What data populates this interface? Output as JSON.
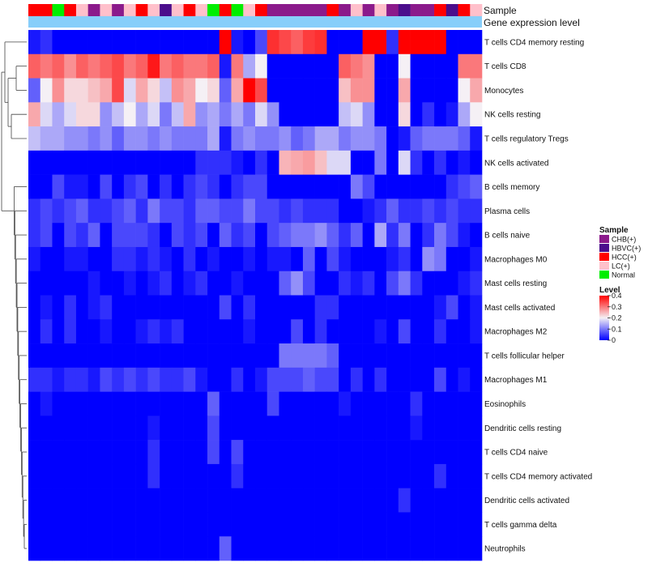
{
  "chart_data": {
    "type": "heatmap",
    "annotation_labels": {
      "sample": "Sample",
      "gene": "Gene expression level"
    },
    "sample_groups": [
      "CHB(+)",
      "HBVC(+)",
      "HCC(+)",
      "LC(+)",
      "Normal"
    ],
    "colors": {
      "sample": {
        "CHB(+)": "#8B1A8B",
        "HBVC(+)": "#4B0E8C",
        "HCC(+)": "#FF0000",
        "LC(+)": "#FFC0CB",
        "Normal": "#00EE00"
      },
      "gene_bar": "#87CEFA",
      "level_low": "#0000FF",
      "level_mid": "#F5F0F5",
      "level_high": "#FF0000"
    },
    "samples": [
      "HCC(+)",
      "HCC(+)",
      "Normal",
      "HCC(+)",
      "LC(+)",
      "CHB(+)",
      "LC(+)",
      "CHB(+)",
      "LC(+)",
      "HCC(+)",
      "LC(+)",
      "HBVC(+)",
      "LC(+)",
      "HCC(+)",
      "LC(+)",
      "Normal",
      "HCC(+)",
      "Normal",
      "LC(+)",
      "HCC(+)",
      "CHB(+)",
      "CHB(+)",
      "CHB(+)",
      "CHB(+)",
      "CHB(+)",
      "HCC(+)",
      "CHB(+)",
      "LC(+)",
      "CHB(+)",
      "LC(+)",
      "CHB(+)",
      "HBVC(+)",
      "CHB(+)",
      "CHB(+)",
      "HCC(+)",
      "HBVC(+)",
      "HCC(+)",
      "LC(+)"
    ],
    "rows": [
      "T cells CD4 memory resting",
      "T cells CD8",
      "Monocytes",
      "NK cells resting",
      "T cells regulatory  Tregs",
      "NK cells activated",
      "B cells memory",
      "Plasma cells",
      "B cells naive",
      "Macrophages M0",
      "Mast cells resting",
      "Mast cells activated",
      "Macrophages M2",
      "T cells follicular helper",
      "Macrophages M1",
      "Eosinophils",
      "Dendritic cells resting",
      "T cells CD4 naive",
      "T cells CD4 memory activated",
      "Dendritic cells activated",
      "T cells gamma delta",
      "Neutrophils"
    ],
    "values": [
      [
        0.02,
        0.04,
        0.0,
        0.0,
        0.0,
        0.0,
        0.0,
        0.0,
        0.0,
        0.0,
        0.0,
        0.0,
        0.0,
        0.0,
        0.0,
        0.0,
        0.4,
        0.02,
        0.0,
        0.06,
        0.36,
        0.34,
        0.32,
        0.35,
        0.36,
        0.0,
        0.0,
        0.0,
        0.4,
        0.4,
        0.04,
        0.4,
        0.4,
        0.4,
        0.4,
        0.0,
        0.0,
        0.0
      ],
      [
        0.32,
        0.3,
        0.32,
        0.28,
        0.32,
        0.3,
        0.32,
        0.34,
        0.3,
        0.32,
        0.38,
        0.3,
        0.32,
        0.3,
        0.3,
        0.32,
        0.02,
        0.3,
        0.14,
        0.2,
        0.0,
        0.0,
        0.0,
        0.0,
        0.0,
        0.0,
        0.32,
        0.3,
        0.28,
        0.0,
        0.0,
        0.2,
        0.0,
        0.0,
        0.0,
        0.0,
        0.3,
        0.3
      ],
      [
        0.08,
        0.2,
        0.28,
        0.22,
        0.22,
        0.24,
        0.26,
        0.34,
        0.18,
        0.26,
        0.22,
        0.16,
        0.28,
        0.26,
        0.2,
        0.22,
        0.08,
        0.26,
        0.4,
        0.34,
        0.0,
        0.0,
        0.0,
        0.0,
        0.0,
        0.0,
        0.24,
        0.28,
        0.28,
        0.0,
        0.0,
        0.26,
        0.0,
        0.0,
        0.0,
        0.0,
        0.2,
        0.26
      ],
      [
        0.26,
        0.18,
        0.14,
        0.18,
        0.22,
        0.22,
        0.12,
        0.16,
        0.2,
        0.14,
        0.18,
        0.1,
        0.16,
        0.26,
        0.12,
        0.14,
        0.1,
        0.14,
        0.1,
        0.18,
        0.12,
        0.0,
        0.0,
        0.0,
        0.0,
        0.0,
        0.16,
        0.18,
        0.12,
        0.0,
        0.0,
        0.22,
        0.0,
        0.04,
        0.0,
        0.02,
        0.14,
        0.2
      ],
      [
        0.16,
        0.14,
        0.14,
        0.12,
        0.12,
        0.1,
        0.12,
        0.08,
        0.12,
        0.12,
        0.1,
        0.12,
        0.1,
        0.1,
        0.1,
        0.14,
        0.02,
        0.1,
        0.12,
        0.1,
        0.1,
        0.12,
        0.08,
        0.1,
        0.14,
        0.14,
        0.1,
        0.12,
        0.12,
        0.1,
        0.0,
        0.02,
        0.08,
        0.1,
        0.1,
        0.1,
        0.08,
        0.02
      ],
      [
        0.0,
        0.0,
        0.0,
        0.0,
        0.0,
        0.0,
        0.0,
        0.0,
        0.0,
        0.0,
        0.0,
        0.0,
        0.0,
        0.0,
        0.04,
        0.04,
        0.04,
        0.02,
        0.0,
        0.04,
        0.0,
        0.25,
        0.26,
        0.27,
        0.24,
        0.18,
        0.18,
        0.0,
        0.0,
        0.1,
        0.0,
        0.18,
        0.04,
        0.0,
        0.04,
        0.0,
        0.02,
        0.0
      ],
      [
        0.0,
        0.0,
        0.06,
        0.02,
        0.02,
        0.0,
        0.06,
        0.0,
        0.04,
        0.06,
        0.0,
        0.04,
        0.0,
        0.04,
        0.06,
        0.04,
        0.0,
        0.04,
        0.06,
        0.06,
        0.0,
        0.0,
        0.0,
        0.0,
        0.0,
        0.0,
        0.0,
        0.1,
        0.06,
        0.0,
        0.0,
        0.0,
        0.0,
        0.0,
        0.0,
        0.04,
        0.06,
        0.08
      ],
      [
        0.04,
        0.06,
        0.04,
        0.06,
        0.08,
        0.04,
        0.04,
        0.06,
        0.08,
        0.04,
        0.1,
        0.06,
        0.06,
        0.04,
        0.08,
        0.08,
        0.06,
        0.06,
        0.1,
        0.06,
        0.06,
        0.04,
        0.06,
        0.04,
        0.04,
        0.04,
        0.0,
        0.0,
        0.02,
        0.04,
        0.08,
        0.04,
        0.04,
        0.06,
        0.04,
        0.06,
        0.04,
        0.04
      ],
      [
        0.04,
        0.06,
        0.0,
        0.06,
        0.04,
        0.08,
        0.0,
        0.06,
        0.06,
        0.06,
        0.04,
        0.0,
        0.06,
        0.04,
        0.06,
        0.0,
        0.08,
        0.04,
        0.06,
        0.0,
        0.06,
        0.08,
        0.1,
        0.1,
        0.12,
        0.08,
        0.04,
        0.08,
        0.0,
        0.14,
        0.04,
        0.1,
        0.0,
        0.04,
        0.1,
        0.06,
        0.02,
        0.0
      ],
      [
        0.02,
        0.0,
        0.0,
        0.02,
        0.02,
        0.0,
        0.0,
        0.04,
        0.04,
        0.02,
        0.04,
        0.02,
        0.0,
        0.04,
        0.0,
        0.02,
        0.0,
        0.0,
        0.02,
        0.0,
        0.02,
        0.02,
        0.0,
        0.08,
        0.0,
        0.06,
        0.02,
        0.0,
        0.0,
        0.0,
        0.02,
        0.04,
        0.0,
        0.12,
        0.1,
        0.0,
        0.0,
        0.02
      ],
      [
        0.0,
        0.0,
        0.0,
        0.0,
        0.0,
        0.02,
        0.0,
        0.0,
        0.02,
        0.0,
        0.02,
        0.04,
        0.0,
        0.02,
        0.04,
        0.0,
        0.0,
        0.02,
        0.0,
        0.0,
        0.0,
        0.08,
        0.12,
        0.06,
        0.0,
        0.0,
        0.04,
        0.02,
        0.04,
        0.0,
        0.06,
        0.1,
        0.04,
        0.0,
        0.0,
        0.0,
        0.02,
        0.04
      ],
      [
        0.0,
        0.02,
        0.0,
        0.04,
        0.0,
        0.02,
        0.04,
        0.0,
        0.0,
        0.0,
        0.0,
        0.0,
        0.0,
        0.0,
        0.0,
        0.0,
        0.06,
        0.0,
        0.04,
        0.0,
        0.0,
        0.0,
        0.0,
        0.0,
        0.04,
        0.04,
        0.0,
        0.0,
        0.0,
        0.0,
        0.0,
        0.0,
        0.0,
        0.0,
        0.02,
        0.06,
        0.0,
        0.02
      ],
      [
        0.0,
        0.04,
        0.0,
        0.04,
        0.0,
        0.0,
        0.02,
        0.0,
        0.0,
        0.02,
        0.04,
        0.02,
        0.04,
        0.0,
        0.0,
        0.0,
        0.0,
        0.0,
        0.02,
        0.0,
        0.0,
        0.0,
        0.06,
        0.0,
        0.04,
        0.0,
        0.0,
        0.0,
        0.0,
        0.02,
        0.0,
        0.06,
        0.0,
        0.0,
        0.04,
        0.0,
        0.0,
        0.02
      ],
      [
        0.0,
        0.0,
        0.0,
        0.0,
        0.0,
        0.0,
        0.0,
        0.0,
        0.0,
        0.0,
        0.0,
        0.0,
        0.0,
        0.0,
        0.0,
        0.0,
        0.0,
        0.0,
        0.0,
        0.0,
        0.0,
        0.1,
        0.1,
        0.1,
        0.1,
        0.08,
        0.0,
        0.0,
        0.0,
        0.0,
        0.0,
        0.0,
        0.0,
        0.0,
        0.0,
        0.0,
        0.0,
        0.0
      ],
      [
        0.04,
        0.04,
        0.02,
        0.04,
        0.04,
        0.02,
        0.06,
        0.04,
        0.06,
        0.04,
        0.06,
        0.04,
        0.04,
        0.06,
        0.02,
        0.0,
        0.0,
        0.04,
        0.0,
        0.02,
        0.06,
        0.06,
        0.06,
        0.08,
        0.06,
        0.06,
        0.0,
        0.04,
        0.0,
        0.04,
        0.0,
        0.0,
        0.0,
        0.0,
        0.06,
        0.0,
        0.02,
        0.0
      ],
      [
        0.0,
        0.02,
        0.0,
        0.0,
        0.0,
        0.0,
        0.0,
        0.0,
        0.0,
        0.0,
        0.0,
        0.0,
        0.0,
        0.0,
        0.0,
        0.08,
        0.0,
        0.0,
        0.0,
        0.0,
        0.06,
        0.0,
        0.0,
        0.0,
        0.0,
        0.0,
        0.02,
        0.0,
        0.0,
        0.0,
        0.0,
        0.0,
        0.04,
        0.0,
        0.0,
        0.0,
        0.0,
        0.0
      ],
      [
        0.0,
        0.0,
        0.0,
        0.0,
        0.0,
        0.0,
        0.0,
        0.0,
        0.0,
        0.0,
        0.02,
        0.0,
        0.0,
        0.0,
        0.0,
        0.06,
        0.0,
        0.0,
        0.0,
        0.0,
        0.0,
        0.0,
        0.0,
        0.0,
        0.0,
        0.0,
        0.0,
        0.0,
        0.0,
        0.0,
        0.0,
        0.0,
        0.02,
        0.0,
        0.0,
        0.0,
        0.0,
        0.0
      ],
      [
        0.0,
        0.0,
        0.0,
        0.0,
        0.0,
        0.0,
        0.0,
        0.0,
        0.0,
        0.0,
        0.04,
        0.0,
        0.0,
        0.0,
        0.0,
        0.06,
        0.0,
        0.06,
        0.0,
        0.0,
        0.0,
        0.0,
        0.0,
        0.0,
        0.0,
        0.0,
        0.0,
        0.0,
        0.0,
        0.0,
        0.0,
        0.0,
        0.0,
        0.0,
        0.0,
        0.0,
        0.0,
        0.0
      ],
      [
        0.0,
        0.0,
        0.0,
        0.0,
        0.0,
        0.0,
        0.0,
        0.0,
        0.0,
        0.0,
        0.04,
        0.0,
        0.0,
        0.0,
        0.0,
        0.0,
        0.0,
        0.04,
        0.0,
        0.0,
        0.0,
        0.0,
        0.0,
        0.0,
        0.0,
        0.0,
        0.0,
        0.0,
        0.0,
        0.0,
        0.0,
        0.0,
        0.0,
        0.0,
        0.04,
        0.0,
        0.0,
        0.0
      ],
      [
        0.0,
        0.0,
        0.0,
        0.0,
        0.0,
        0.0,
        0.0,
        0.0,
        0.0,
        0.0,
        0.0,
        0.0,
        0.0,
        0.0,
        0.0,
        0.0,
        0.0,
        0.0,
        0.0,
        0.0,
        0.0,
        0.0,
        0.0,
        0.0,
        0.0,
        0.0,
        0.0,
        0.0,
        0.0,
        0.0,
        0.0,
        0.04,
        0.0,
        0.0,
        0.0,
        0.0,
        0.0,
        0.0
      ],
      [
        0.0,
        0.0,
        0.0,
        0.0,
        0.0,
        0.0,
        0.0,
        0.0,
        0.0,
        0.0,
        0.0,
        0.0,
        0.0,
        0.0,
        0.0,
        0.0,
        0.0,
        0.0,
        0.0,
        0.0,
        0.0,
        0.0,
        0.0,
        0.0,
        0.0,
        0.0,
        0.0,
        0.0,
        0.0,
        0.0,
        0.0,
        0.0,
        0.0,
        0.0,
        0.0,
        0.0,
        0.0,
        0.0
      ],
      [
        0.0,
        0.0,
        0.0,
        0.0,
        0.0,
        0.0,
        0.0,
        0.0,
        0.0,
        0.0,
        0.0,
        0.0,
        0.0,
        0.0,
        0.0,
        0.0,
        0.08,
        0.0,
        0.0,
        0.0,
        0.0,
        0.0,
        0.0,
        0.0,
        0.0,
        0.0,
        0.0,
        0.0,
        0.0,
        0.0,
        0.0,
        0.0,
        0.0,
        0.0,
        0.0,
        0.0,
        0.0,
        0.0
      ]
    ],
    "legend": {
      "sample_title": "Sample",
      "level_title": "Level",
      "level_ticks": [
        "0.4",
        "0.3",
        "0.2",
        "0.1",
        "0"
      ],
      "level_range": [
        0,
        0.4
      ]
    }
  }
}
